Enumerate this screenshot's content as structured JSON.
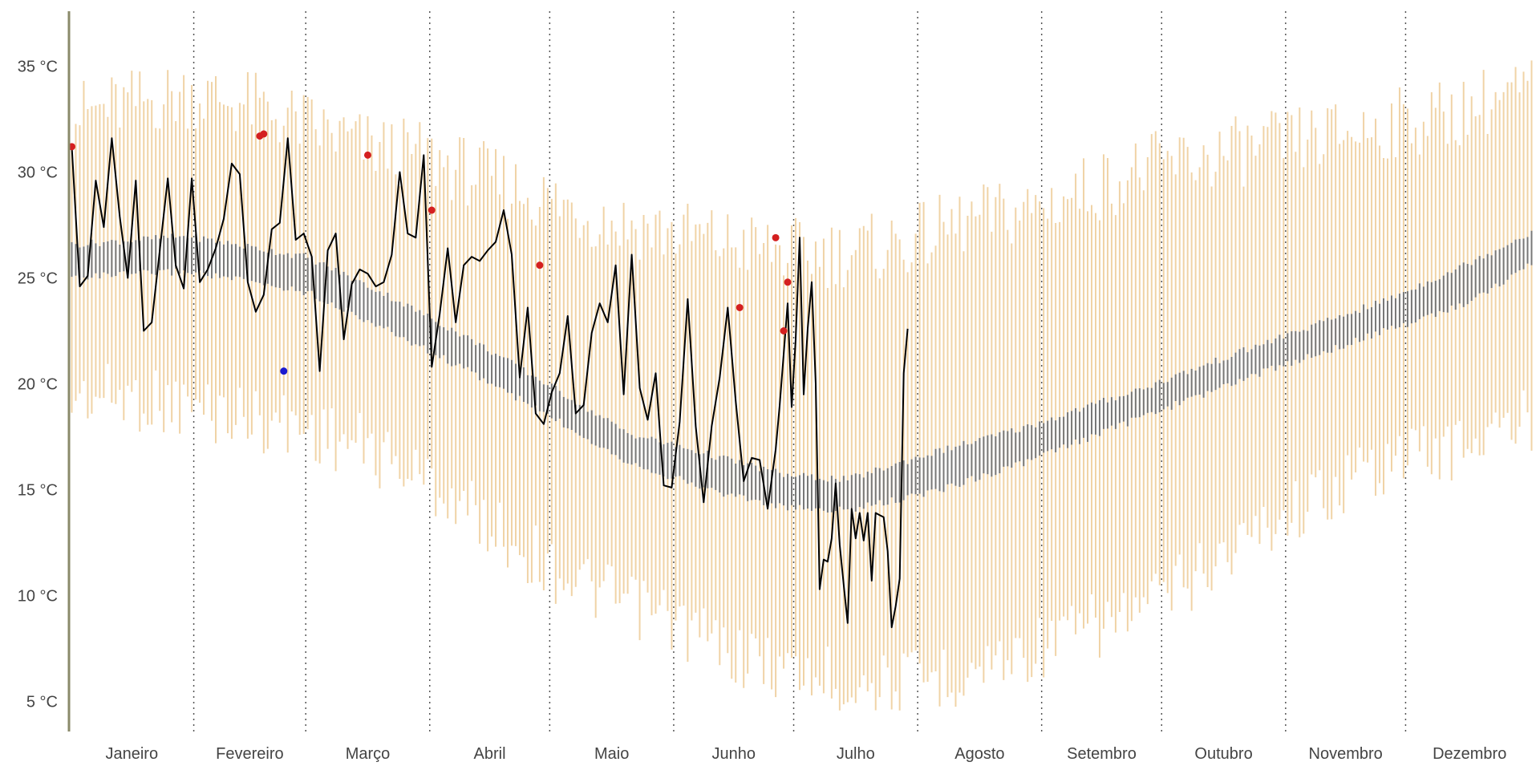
{
  "chart_data": {
    "type": "line",
    "title": "",
    "xlabel": "",
    "ylabel": "",
    "ylim": [
      3.5,
      38.0
    ],
    "y_ticks": [
      5,
      10,
      15,
      20,
      25,
      30,
      35
    ],
    "y_tick_labels": [
      "5 °C",
      "10 °C",
      "15 °C",
      "20 °C",
      "25 °C",
      "30 °C",
      "35 °C"
    ],
    "x_unit": "day of year",
    "xlim": [
      1,
      366
    ],
    "month_labels": [
      "Janeiro",
      "Fevereiro",
      "Março",
      "Abril",
      "Maio",
      "Junho",
      "Julho",
      "Agosto",
      "Setembro",
      "Outubro",
      "Novembro",
      "Dezembro"
    ],
    "month_start_days": [
      1,
      32,
      60,
      91,
      121,
      152,
      182,
      213,
      244,
      274,
      305,
      335
    ],
    "grid": "horizontal white lines at y ticks; dotted vertical separators between months",
    "colors": {
      "record_range": "#f0d3a6",
      "normal_range": "#787878",
      "current_year": "#000000",
      "record_high_marker": "#d42020",
      "record_low_marker": "#1a1ad0",
      "axis_line": "#8a8a6a",
      "month_separator": "#555555"
    },
    "series": [
      {
        "kind": "record_range",
        "anchors_day": [
          1,
          15,
          30,
          45,
          60,
          75,
          90,
          105,
          120,
          135,
          150,
          165,
          180,
          195,
          210,
          225,
          240,
          255,
          270,
          285,
          300,
          315,
          330,
          345,
          360,
          366
        ],
        "anchors_low": [
          21.0,
          21.0,
          20.5,
          20.0,
          19.5,
          18.5,
          17.0,
          15.0,
          13.0,
          11.5,
          10.5,
          9.0,
          8.0,
          7.5,
          7.5,
          8.0,
          9.0,
          10.0,
          11.0,
          13.0,
          15.0,
          16.5,
          18.0,
          18.5,
          19.5,
          20.0
        ],
        "anchors_high": [
          31.0,
          31.5,
          32.0,
          31.5,
          30.5,
          29.5,
          29.0,
          28.0,
          27.0,
          26.0,
          25.5,
          25.0,
          24.5,
          24.5,
          25.0,
          26.0,
          26.5,
          27.5,
          28.5,
          29.0,
          29.5,
          30.0,
          30.5,
          31.0,
          32.0,
          32.0
        ]
      },
      {
        "kind": "normal_range",
        "anchors_day": [
          1,
          30,
          60,
          80,
          100,
          120,
          140,
          160,
          180,
          195,
          215,
          240,
          270,
          300,
          330,
          350,
          366
        ],
        "anchors_low": [
          25.2,
          25.5,
          24.5,
          22.7,
          20.8,
          18.7,
          16.5,
          15.2,
          14.3,
          14.2,
          15.0,
          16.5,
          18.7,
          20.8,
          22.7,
          24.0,
          25.8
        ],
        "anchors_high": [
          26.4,
          26.8,
          25.8,
          24.0,
          22.0,
          19.8,
          17.5,
          16.5,
          15.5,
          15.3,
          16.5,
          17.8,
          19.7,
          21.8,
          23.8,
          25.5,
          27.0
        ]
      },
      {
        "kind": "current_year",
        "name": "",
        "x": [
          1,
          3,
          5,
          7,
          9,
          11,
          13,
          15,
          17,
          19,
          21,
          23,
          25,
          27,
          29,
          31,
          33,
          35,
          37,
          39,
          41,
          43,
          45,
          47,
          49,
          51,
          53,
          55,
          57,
          59,
          61,
          63,
          65,
          67,
          69,
          71,
          73,
          75,
          77,
          79,
          81,
          83,
          85,
          87,
          89,
          91,
          93,
          95,
          97,
          99,
          101,
          103,
          105,
          107,
          109,
          111,
          113,
          115,
          117,
          119,
          121,
          123,
          125,
          127,
          129,
          131,
          133,
          135,
          137,
          139,
          141,
          143,
          145,
          147,
          149,
          151,
          153,
          155,
          157,
          159,
          161,
          163,
          165,
          167,
          169,
          171,
          173,
          175,
          177,
          179,
          181,
          183,
          185,
          187,
          189,
          191,
          193,
          195,
          197,
          199
        ],
        "y": [
          31.2,
          24.6,
          25.1,
          29.6,
          27.4,
          31.6,
          27.9,
          25.0,
          29.6,
          22.5,
          22.9,
          26.3,
          29.7,
          25.6,
          24.5,
          29.7,
          24.8,
          25.4,
          26.4,
          27.8,
          30.4,
          29.9,
          24.8,
          23.4,
          24.2,
          27.3,
          27.6,
          31.6,
          26.8,
          27.1,
          26.0,
          20.6,
          26.3,
          27.1,
          22.1,
          24.7,
          25.4,
          25.2,
          24.6,
          24.8,
          26.1,
          30.0,
          27.1,
          26.9,
          30.8,
          20.8,
          23.3,
          26.4,
          22.9,
          25.6,
          26.0,
          25.8,
          26.3,
          26.7,
          28.2,
          26.1,
          20.3,
          23.6,
          18.6,
          18.1,
          19.6,
          20.5,
          23.2,
          18.6,
          19.0,
          22.4,
          23.8,
          22.9,
          25.6,
          19.5,
          26.1,
          19.8,
          18.3,
          20.5,
          15.2,
          15.1,
          18.2,
          24.0,
          18.0,
          14.4,
          18.0,
          20.3,
          23.6,
          19.2,
          15.4,
          16.5,
          16.4,
          14.1,
          16.9,
          17.5,
          11.9,
          14.1,
          17.6,
          15.0,
          16.5,
          15.9,
          16.6,
          19.6,
          23.6,
          10.5
        ]
      },
      {
        "kind": "current_year_cont",
        "x": [
          178,
          180,
          181,
          182,
          183,
          184,
          185,
          186,
          187,
          188,
          189,
          190,
          191,
          192,
          193,
          194,
          195,
          196,
          197,
          198,
          199,
          200,
          201,
          202,
          203,
          204,
          205,
          206,
          207,
          208,
          209,
          210,
          211,
          212,
          213
        ],
        "y": [
          19.0,
          23.8,
          18.9,
          22.1,
          26.9,
          19.5,
          22.6,
          24.8,
          20.0,
          10.3,
          11.7,
          11.6,
          12.7,
          15.3,
          12.4,
          10.5,
          8.7,
          14.1,
          12.7,
          13.9,
          12.6,
          13.9,
          10.7,
          13.9,
          13.8,
          13.7,
          12.1,
          8.5,
          9.5,
          10.8,
          20.5,
          22.6,
          22.6,
          22.6,
          22.6
        ]
      }
    ],
    "record_high_points": [
      {
        "x": 1,
        "y": 31.2
      },
      {
        "x": 48,
        "y": 31.7
      },
      {
        "x": 49,
        "y": 31.8
      },
      {
        "x": 75,
        "y": 30.8
      },
      {
        "x": 91,
        "y": 28.2
      },
      {
        "x": 118,
        "y": 25.6
      },
      {
        "x": 168,
        "y": 23.6
      },
      {
        "x": 177,
        "y": 26.9
      },
      {
        "x": 179,
        "y": 22.5
      },
      {
        "x": 180,
        "y": 24.8
      }
    ],
    "record_low_points": [
      {
        "x": 54,
        "y": 20.6
      }
    ]
  }
}
